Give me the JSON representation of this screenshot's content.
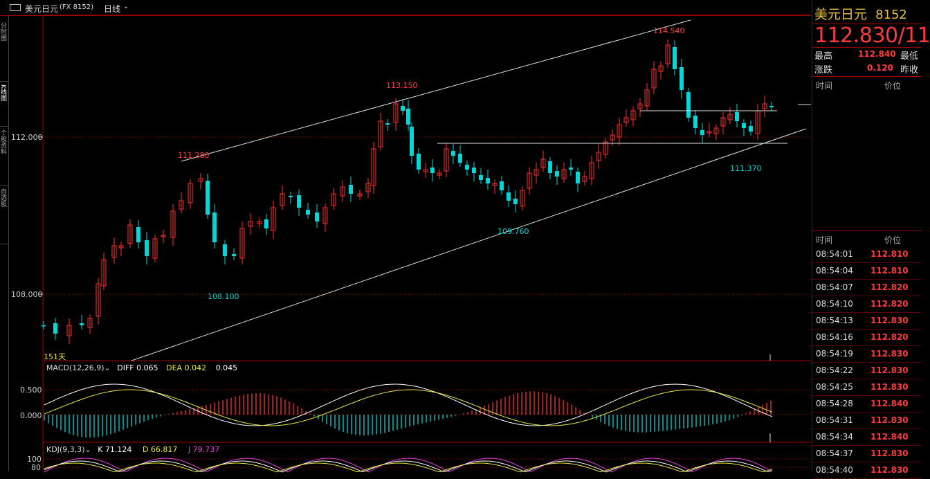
{
  "header": {
    "icon": "window-menu-icon",
    "symbol_name": "美元日元",
    "symbol_code": "(FX 8152)",
    "period": "日线",
    "dropdown_icon": "chevron-down-icon"
  },
  "left_tabs": [
    "分时图",
    "K线图",
    "个股资料",
    "自选股"
  ],
  "main_chart": {
    "y_labels": [
      "112.000",
      "108.000"
    ],
    "price_annotations": [
      {
        "text": "111.280",
        "color": "#ff4040"
      },
      {
        "text": "113.150",
        "color": "#ff4040"
      },
      {
        "text": "114.540",
        "color": "#ff4040"
      },
      {
        "text": "108.100",
        "color": "#00d8d8"
      },
      {
        "text": "109.760",
        "color": "#00d8d8"
      },
      {
        "text": "111.370",
        "color": "#00d8d8"
      }
    ],
    "bottom_left_label": "151天"
  },
  "macd": {
    "name": "MACD(12,26,9)",
    "diff_label": "DIFF",
    "diff_value": "0.065",
    "dea_label": "DEA",
    "dea_value": "0.042",
    "macd_value": "0.045",
    "y_labels": [
      "0.500",
      "0.000"
    ]
  },
  "kdj": {
    "name": "KDJ(9,3,3)",
    "k_label": "K",
    "k_value": "71.124",
    "d_label": "D",
    "d_value": "66.817",
    "j_label": "J",
    "j_value": "79.737",
    "y_labels": [
      "100",
      "80"
    ]
  },
  "quote_panel": {
    "name": "美元日元",
    "code": "8152",
    "last_price": "112.830",
    "price_suffix": "/11",
    "high_label": "最高",
    "high_value": "112.840",
    "low_label": "最低",
    "change_label": "涨跌",
    "change_value": "0.120",
    "prev_close_label": "昨收",
    "time_col": "时间",
    "price_col": "价位"
  },
  "ticks": [
    {
      "time": "08:54:01",
      "price": "112.810"
    },
    {
      "time": "08:54:04",
      "price": "112.810"
    },
    {
      "time": "08:54:07",
      "price": "112.820"
    },
    {
      "time": "08:54:10",
      "price": "112.820"
    },
    {
      "time": "08:54:13",
      "price": "112.830"
    },
    {
      "time": "08:54:16",
      "price": "112.820"
    },
    {
      "time": "08:54:19",
      "price": "112.830"
    },
    {
      "time": "08:54:22",
      "price": "112.830"
    },
    {
      "time": "08:54:25",
      "price": "112.830"
    },
    {
      "time": "08:54:28",
      "price": "112.840"
    },
    {
      "time": "08:54:31",
      "price": "112.830"
    },
    {
      "time": "08:54:34",
      "price": "112.840"
    },
    {
      "time": "08:54:37",
      "price": "112.830"
    },
    {
      "time": "08:54:40",
      "price": "112.830"
    }
  ],
  "colors": {
    "up": "#ff3030",
    "down": "#00d8d8",
    "grid": "#a00000",
    "trend_line": "#e0e0e0",
    "diff_line": "#ffffff",
    "dea_line": "#e8e840",
    "j_line": "#e040e0"
  }
}
